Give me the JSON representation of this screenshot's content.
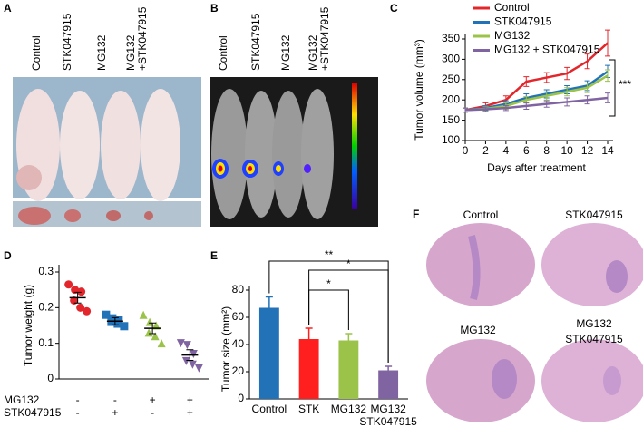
{
  "panels": {
    "letters": [
      "A",
      "B",
      "C",
      "D",
      "E",
      "F"
    ],
    "a_labels": [
      [
        "Control"
      ],
      [
        "STK047915"
      ],
      [
        "MG132"
      ],
      [
        "MG132",
        "+STK047915"
      ]
    ],
    "b_labels": [
      [
        "Control"
      ],
      [
        "STK047915"
      ],
      [
        "MG132"
      ],
      [
        "MG132",
        "+STK047915"
      ]
    ],
    "f_labels": [
      [
        "Control"
      ],
      [
        "STK047915"
      ],
      [
        "MG132"
      ],
      [
        "MG132",
        "STK047915"
      ]
    ]
  },
  "chart_data": [
    {
      "type": "line",
      "xlabel": "Days after treatment",
      "ylabel": "Tumor volume (mm³)",
      "x": [
        0,
        2,
        4,
        6,
        8,
        10,
        12,
        14
      ],
      "xlim": [
        0,
        14
      ],
      "xticks": [
        0,
        2,
        4,
        6,
        8,
        10,
        12,
        14
      ],
      "ylim": [
        100,
        350
      ],
      "yticks": [
        100,
        150,
        200,
        250,
        300,
        350
      ],
      "legend": "upper-left",
      "significance": "***",
      "series": [
        {
          "name": "Control",
          "color": "#e3262b",
          "values": [
            175,
            185,
            200,
            245,
            255,
            265,
            295,
            340
          ],
          "errors": [
            5,
            8,
            10,
            12,
            12,
            15,
            18,
            32
          ]
        },
        {
          "name": "STK047915",
          "color": "#2272b8",
          "values": [
            175,
            180,
            190,
            205,
            215,
            225,
            235,
            270
          ],
          "errors": [
            5,
            6,
            8,
            10,
            10,
            10,
            12,
            15
          ]
        },
        {
          "name": "MG132",
          "color": "#9bc34a",
          "values": [
            175,
            178,
            185,
            200,
            210,
            220,
            230,
            260
          ],
          "errors": [
            5,
            6,
            8,
            8,
            10,
            10,
            12,
            14
          ]
        },
        {
          "name": "MG132 + STK047915",
          "color": "#8064a2",
          "values": [
            175,
            177,
            180,
            185,
            190,
            195,
            200,
            205
          ],
          "errors": [
            5,
            6,
            6,
            8,
            8,
            10,
            10,
            12
          ]
        }
      ]
    },
    {
      "type": "dot",
      "ylabel": "Tumor weight (g)",
      "ylim": [
        0,
        0.3
      ],
      "yticks": [
        0,
        0.1,
        0.2,
        0.3
      ],
      "groups": [
        {
          "color": "#e3262b",
          "marker": "circle",
          "points": [
            0.265,
            0.25,
            0.245,
            0.22,
            0.2,
            0.19
          ],
          "mean": 0.228,
          "sem": 0.015
        },
        {
          "color": "#2272b8",
          "marker": "square",
          "points": [
            0.18,
            0.17,
            0.165,
            0.16,
            0.155,
            0.148
          ],
          "mean": 0.162,
          "sem": 0.01
        },
        {
          "color": "#9bc34a",
          "marker": "triangle",
          "points": [
            0.18,
            0.16,
            0.15,
            0.13,
            0.12,
            0.1
          ],
          "mean": 0.142,
          "sem": 0.015
        },
        {
          "color": "#8064a2",
          "marker": "down-triangle",
          "points": [
            0.1,
            0.095,
            0.07,
            0.05,
            0.04,
            0.03
          ],
          "mean": 0.067,
          "sem": 0.015
        }
      ],
      "conditions": [
        {
          "name": "MG132",
          "signs": [
            "-",
            "-",
            "+",
            "+"
          ]
        },
        {
          "name": "STK047915",
          "signs": [
            "-",
            "+",
            "-",
            "+"
          ]
        }
      ]
    },
    {
      "type": "bar",
      "ylabel": "Tumor size (mm²)",
      "categories": [
        [
          "Control"
        ],
        [
          "STK"
        ],
        [
          "MG132"
        ],
        [
          "MG132",
          "STK047915"
        ]
      ],
      "values": [
        67,
        44,
        43,
        21
      ],
      "errors": [
        8,
        8,
        5,
        3
      ],
      "colors": [
        "#2272b8",
        "#ff1f1f",
        "#9bc34a",
        "#8064a2"
      ],
      "ylim": [
        0,
        80
      ],
      "yticks": [
        0,
        20,
        40,
        60,
        80
      ],
      "significance": [
        "**",
        "*",
        "*"
      ]
    }
  ]
}
